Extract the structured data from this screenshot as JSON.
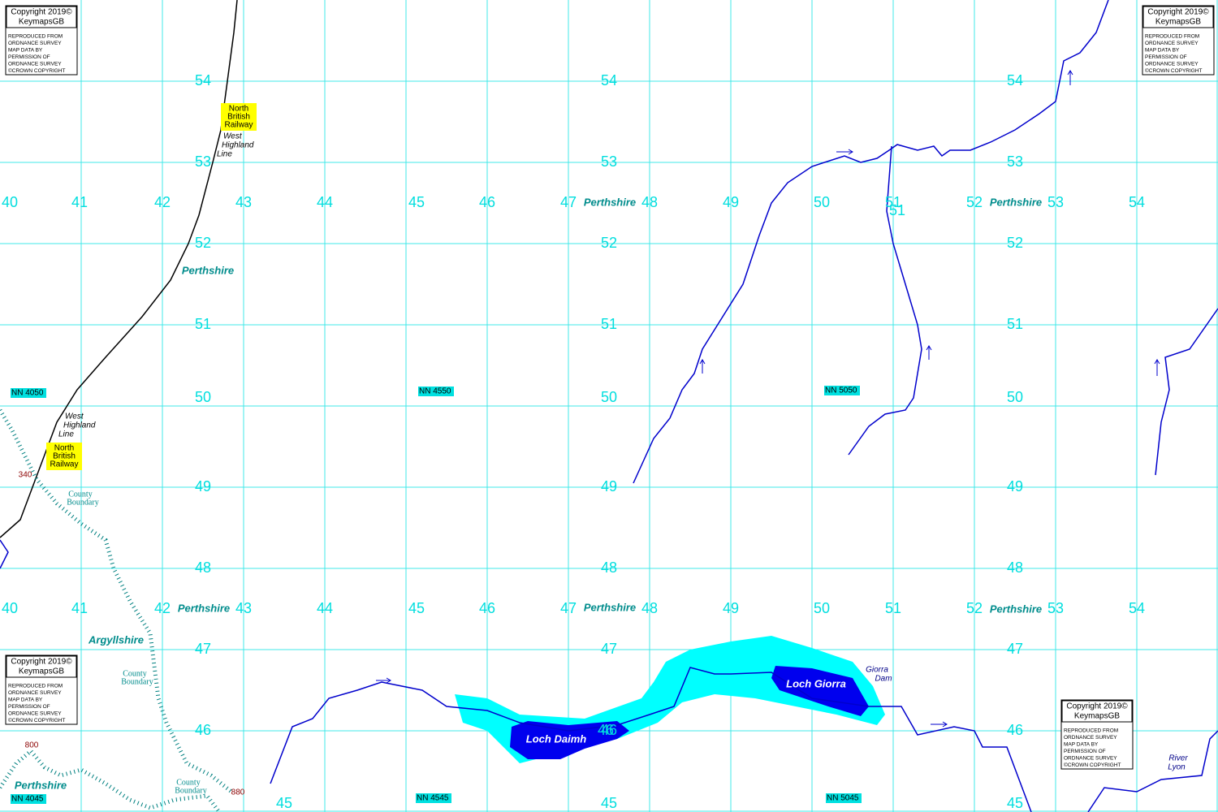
{
  "copyright": {
    "title": "Copyright 2019©",
    "subtitle": "KeymapsGB",
    "notice": [
      "REPRODUCED FROM",
      "ORDNANCE SURVEY",
      "MAP DATA BY",
      "PERMISSION OF",
      "ORDNANCE SURVEY",
      "©CROWN COPYRIGHT"
    ]
  },
  "grid_labels": {
    "eastings": [
      "40",
      "41",
      "42",
      "43",
      "44",
      "45",
      "46",
      "47",
      "48",
      "49",
      "50",
      "51",
      "52",
      "53",
      "54"
    ],
    "northings": [
      "54",
      "53",
      "52",
      "51",
      "50",
      "49",
      "48",
      "47",
      "46",
      "45"
    ]
  },
  "tile_refs": [
    "NN 4050",
    "NN 4550",
    "NN 5050",
    "NN 4045",
    "NN 4545",
    "NN 5045"
  ],
  "labels": {
    "railway": [
      "North",
      "British",
      "Railway"
    ],
    "line": [
      "West",
      "Highland",
      "Line"
    ],
    "perthshire": "Perthshire",
    "argyllshire": "Argyllshire",
    "boundary": [
      "County",
      "Boundary"
    ],
    "spot_heights": [
      "340",
      "800",
      "880"
    ],
    "lochs": [
      "Loch Daimh",
      "Loch Giorra"
    ],
    "dam": [
      "Giorra",
      "Dam"
    ],
    "river": [
      "River",
      "Lyon"
    ]
  }
}
